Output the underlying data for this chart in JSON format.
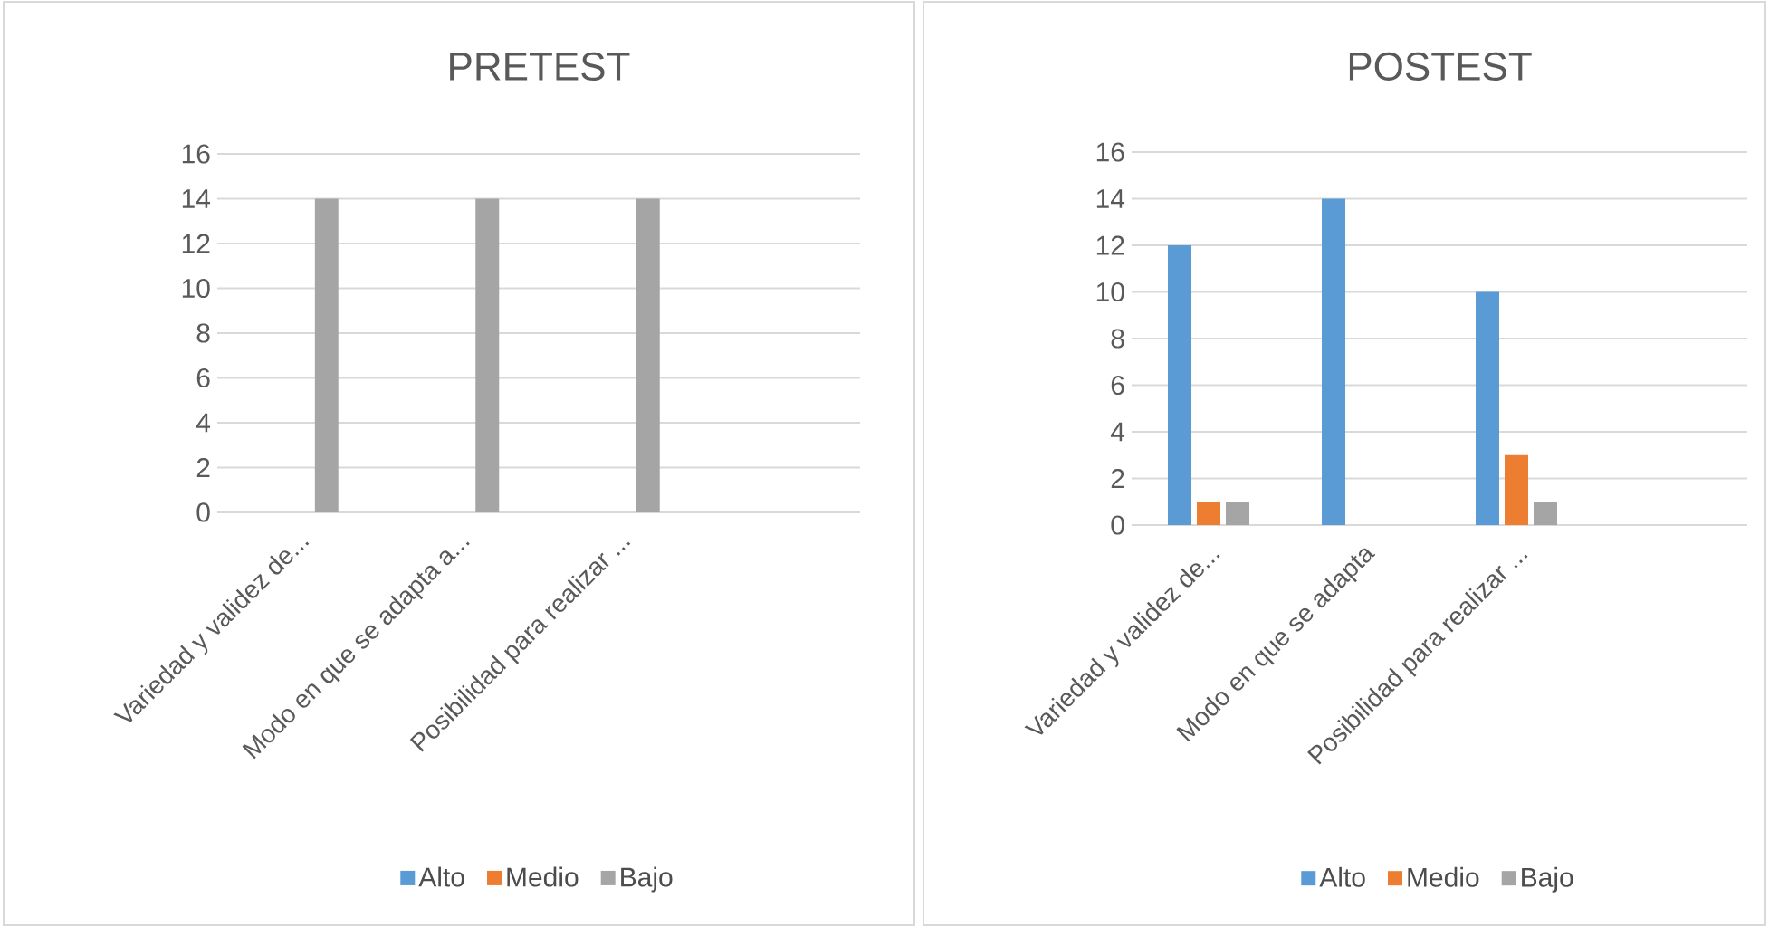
{
  "chart_data": [
    {
      "type": "bar",
      "title": "PRETEST",
      "categories": [
        "Variedad y validez de...",
        "Modo en que se adapta a...",
        "Posibilidad para realizar ...",
        null
      ],
      "series": [
        {
          "name": "Alto",
          "color": "#5b9bd5",
          "values": [
            0,
            0,
            0,
            null
          ]
        },
        {
          "name": "Medio",
          "color": "#ed7d31",
          "values": [
            0,
            0,
            0,
            null
          ]
        },
        {
          "name": "Bajo",
          "color": "#a5a5a5",
          "values": [
            14,
            14,
            14,
            null
          ]
        }
      ],
      "ylim": [
        0,
        16
      ],
      "yticks": [
        0,
        2,
        4,
        6,
        8,
        10,
        12,
        14,
        16
      ],
      "grid": "y",
      "legend": "bottom"
    },
    {
      "type": "bar",
      "title": "POSTEST",
      "categories": [
        "Variedad y validez de...",
        "Modo en que se adapta",
        "Posibilidad para realizar ...",
        null
      ],
      "series": [
        {
          "name": "Alto",
          "color": "#5b9bd5",
          "values": [
            12,
            14,
            10,
            null
          ]
        },
        {
          "name": "Medio",
          "color": "#ed7d31",
          "values": [
            1,
            0,
            3,
            null
          ]
        },
        {
          "name": "Bajo",
          "color": "#a5a5a5",
          "values": [
            1,
            0,
            1,
            null
          ]
        }
      ],
      "ylim": [
        0,
        16
      ],
      "yticks": [
        0,
        2,
        4,
        6,
        8,
        10,
        12,
        14,
        16
      ],
      "grid": "y",
      "legend": "bottom"
    }
  ]
}
